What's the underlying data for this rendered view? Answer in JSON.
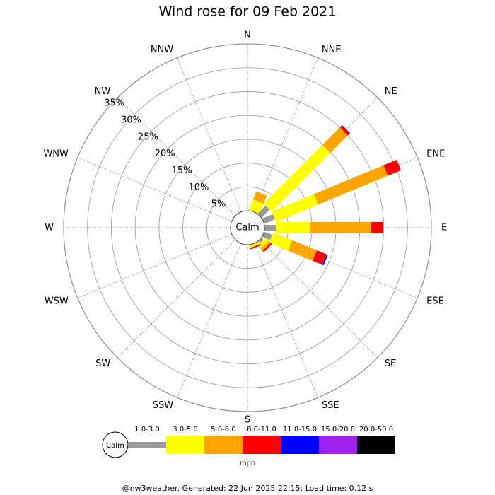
{
  "chart_data": {
    "type": "windrose",
    "title": "Wind rose for 09 Feb 2021",
    "categories": [
      "N",
      "NNE",
      "NE",
      "ENE",
      "E",
      "ESE",
      "SE",
      "SSE",
      "S",
      "SSW",
      "SW",
      "WSW",
      "W",
      "WNW",
      "NW",
      "NNW"
    ],
    "series": [
      {
        "name": "1.0-3.0",
        "color": "#999999",
        "values": [
          0,
          0,
          2.4,
          2.4,
          2.4,
          1.8,
          0.6,
          0,
          0,
          0,
          0,
          0,
          0,
          0,
          0,
          0
        ]
      },
      {
        "name": "3.0-5.0",
        "color": "#ffff00",
        "values": [
          0,
          2.4,
          17.4,
          9.6,
          7.1,
          4.3,
          0.9,
          0.6,
          0,
          0,
          0,
          0,
          0,
          0,
          0,
          0
        ]
      },
      {
        "name": "5.0-8.0",
        "color": "#ffa500",
        "values": [
          0,
          1.8,
          5.2,
          15.8,
          12.9,
          5.6,
          0.6,
          0,
          0,
          0,
          0,
          0,
          0,
          0,
          0,
          0
        ]
      },
      {
        "name": "8.0-11.0",
        "color": "#ff0000",
        "values": [
          0,
          0,
          0.6,
          3.0,
          2.4,
          2.2,
          0.4,
          0.3,
          0,
          0,
          0,
          0,
          0,
          0,
          0,
          0
        ]
      },
      {
        "name": "11.0-15.0",
        "color": "#0000ff",
        "values": [
          0,
          0,
          0.1,
          0,
          0,
          0.3,
          0,
          0,
          0,
          0,
          0,
          0,
          0,
          0,
          0,
          0
        ]
      },
      {
        "name": "15.0-20.0",
        "color": "#a020f0",
        "values": [
          0,
          0,
          0,
          0,
          0,
          0,
          0,
          0,
          0,
          0,
          0,
          0,
          0,
          0,
          0,
          0
        ]
      },
      {
        "name": "20.0-50.0",
        "color": "#000000",
        "values": [
          0,
          0,
          0,
          0,
          0,
          0,
          0,
          0,
          0,
          0,
          0,
          0,
          0,
          0,
          0,
          0
        ]
      }
    ],
    "rlim": [
      0,
      35
    ],
    "rticks": [
      {
        "value": 5,
        "label": "5%"
      },
      {
        "value": 10,
        "label": "10%"
      },
      {
        "value": 15,
        "label": "15%"
      },
      {
        "value": 20,
        "label": "20%"
      },
      {
        "value": 25,
        "label": "25%"
      },
      {
        "value": 30,
        "label": "30%"
      },
      {
        "value": 35,
        "label": "35%"
      }
    ],
    "calm_label": "Calm",
    "unit": "mph",
    "footer": "@nw3weather. Generated: 22 Jun 2025 22:15; Load time: 0.12 s"
  }
}
